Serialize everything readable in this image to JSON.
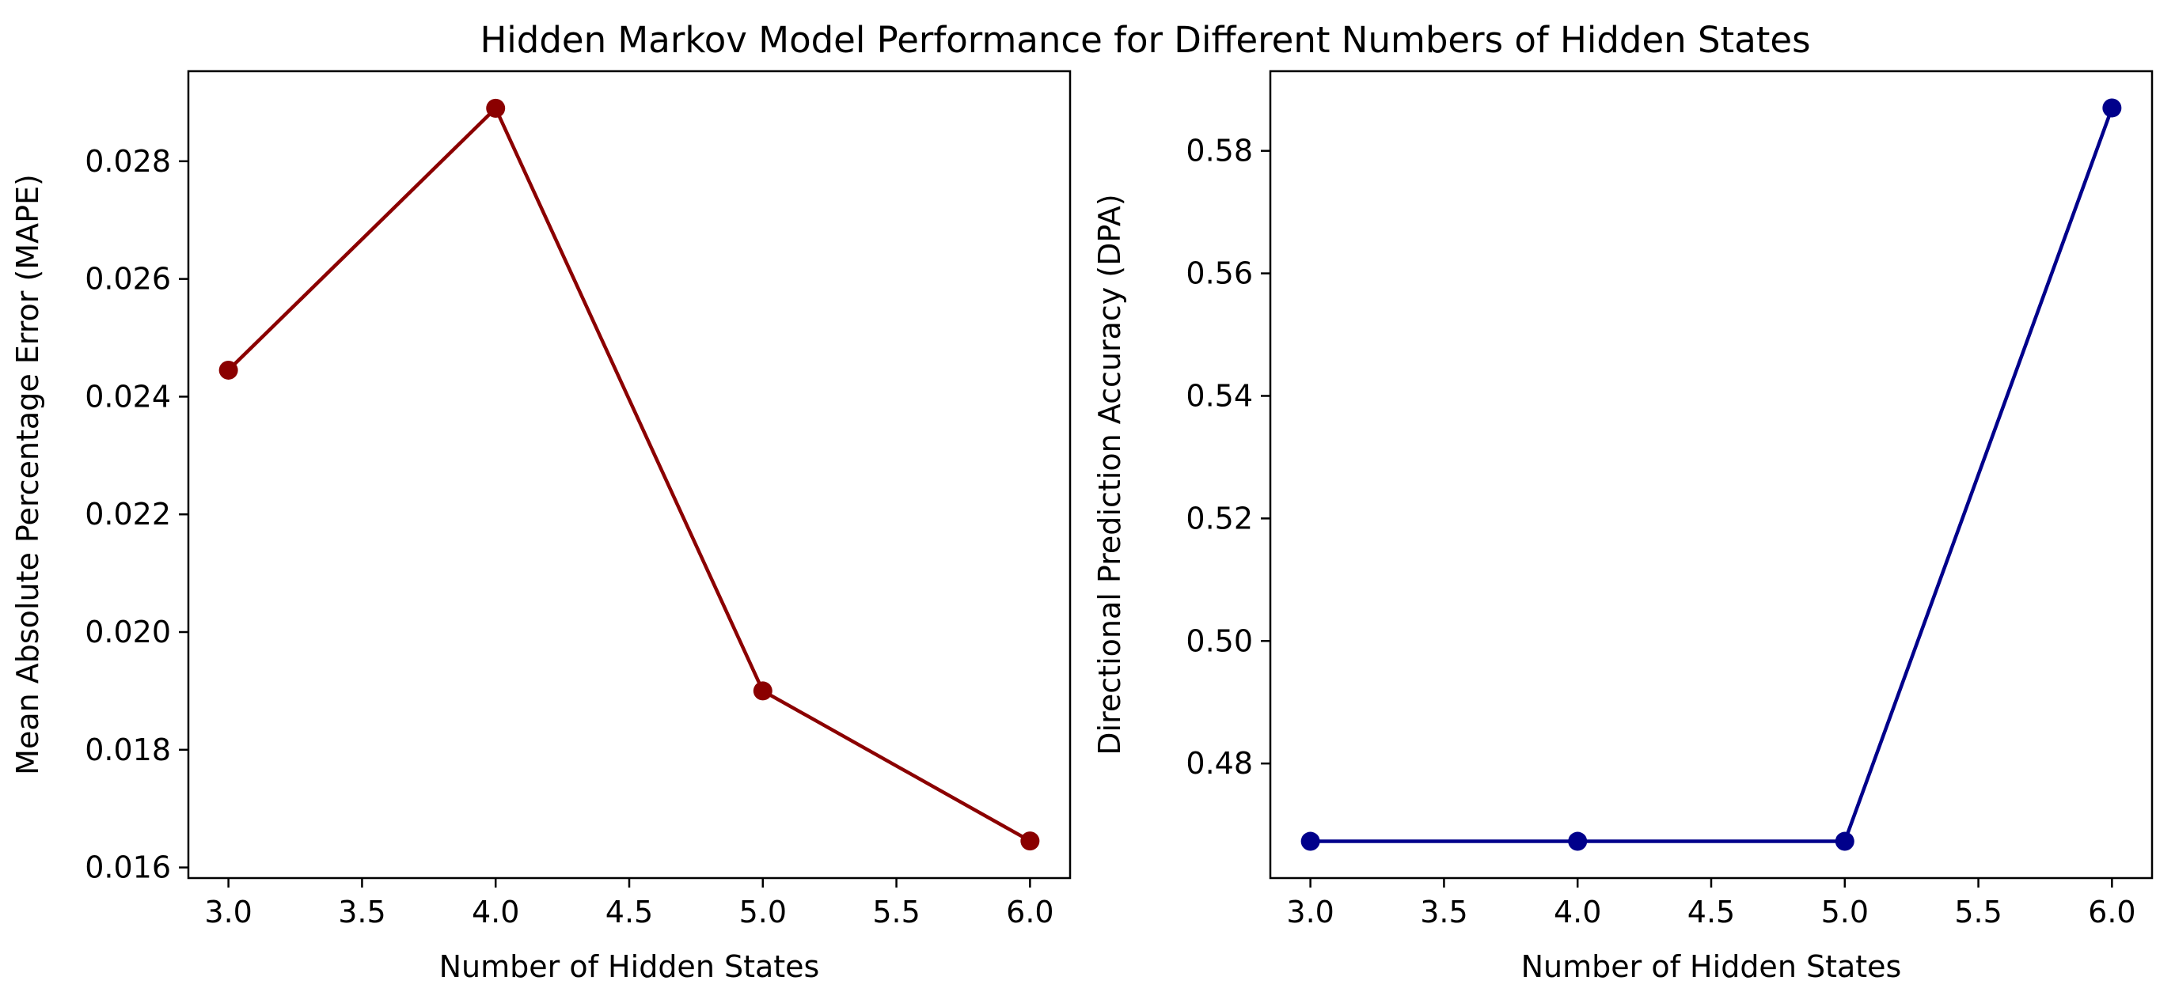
{
  "figure": {
    "title": "Hidden Markov Model Performance for Different Numbers of Hidden States"
  },
  "chart_data": [
    {
      "type": "line",
      "xlabel": "Number of Hidden States",
      "ylabel": "Mean Absolute Percentage Error (MAPE)",
      "x": [
        3.0,
        4.0,
        5.0,
        6.0
      ],
      "series": [
        {
          "values": [
            0.02445,
            0.0289,
            0.019,
            0.01645
          ],
          "color": "#8b0000",
          "marker": "circle"
        }
      ],
      "xlim": [
        2.85,
        6.15
      ],
      "ylim": [
        0.01582,
        0.02953
      ],
      "xticks": [
        3.0,
        3.5,
        4.0,
        4.5,
        5.0,
        5.5,
        6.0
      ],
      "xtick_labels": [
        "3.0",
        "3.5",
        "4.0",
        "4.5",
        "5.0",
        "5.5",
        "6.0"
      ],
      "yticks": [
        0.016,
        0.018,
        0.02,
        0.022,
        0.024,
        0.026,
        0.028
      ],
      "ytick_labels": [
        "0.016",
        "0.018",
        "0.020",
        "0.022",
        "0.024",
        "0.026",
        "0.028"
      ],
      "grid": false
    },
    {
      "type": "line",
      "xlabel": "Number of Hidden States",
      "ylabel": "Directional Prediction Accuracy (DPA)",
      "x": [
        3.0,
        4.0,
        5.0,
        6.0
      ],
      "series": [
        {
          "values": [
            0.4673,
            0.4673,
            0.4673,
            0.587
          ],
          "color": "#00008b",
          "marker": "circle"
        }
      ],
      "xlim": [
        2.85,
        6.15
      ],
      "ylim": [
        0.4613,
        0.593
      ],
      "xticks": [
        3.0,
        3.5,
        4.0,
        4.5,
        5.0,
        5.5,
        6.0
      ],
      "xtick_labels": [
        "3.0",
        "3.5",
        "4.0",
        "4.5",
        "5.0",
        "5.5",
        "6.0"
      ],
      "yticks": [
        0.48,
        0.5,
        0.52,
        0.54,
        0.56,
        0.58
      ],
      "ytick_labels": [
        "0.48",
        "0.50",
        "0.52",
        "0.54",
        "0.56",
        "0.58"
      ],
      "grid": false
    }
  ]
}
